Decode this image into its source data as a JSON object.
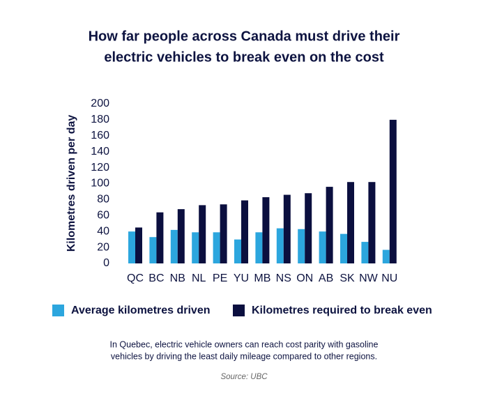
{
  "chart_data": {
    "type": "bar",
    "title": [
      "How far people across Canada must drive their",
      "electric vehicles to break even on the cost"
    ],
    "y_label": "Kilometres driven per day",
    "categories": [
      "QC",
      "BC",
      "NB",
      "NL",
      "PE",
      "YU",
      "MB",
      "NS",
      "ON",
      "AB",
      "SK",
      "NW",
      "NU"
    ],
    "series": [
      {
        "name": "Average kilometres driven",
        "color": "#2ca6de",
        "values": [
          40,
          33,
          42,
          39,
          39,
          30,
          39,
          44,
          43,
          40,
          37,
          27,
          17
        ]
      },
      {
        "name": "Kilometres required to break even",
        "color": "#0b0f3f",
        "values": [
          45,
          64,
          68,
          73,
          74,
          79,
          83,
          86,
          88,
          96,
          102,
          102,
          180
        ]
      }
    ],
    "ylim": [
      0,
      200
    ],
    "yticks": [
      0,
      20,
      40,
      60,
      80,
      100,
      120,
      140,
      160,
      180,
      200
    ],
    "note": [
      "In Quebec, electric vehicle owners can reach cost parity with gasoline",
      "vehicles by driving the least daily mileage compared to other regions."
    ],
    "source": "Source: UBC"
  }
}
